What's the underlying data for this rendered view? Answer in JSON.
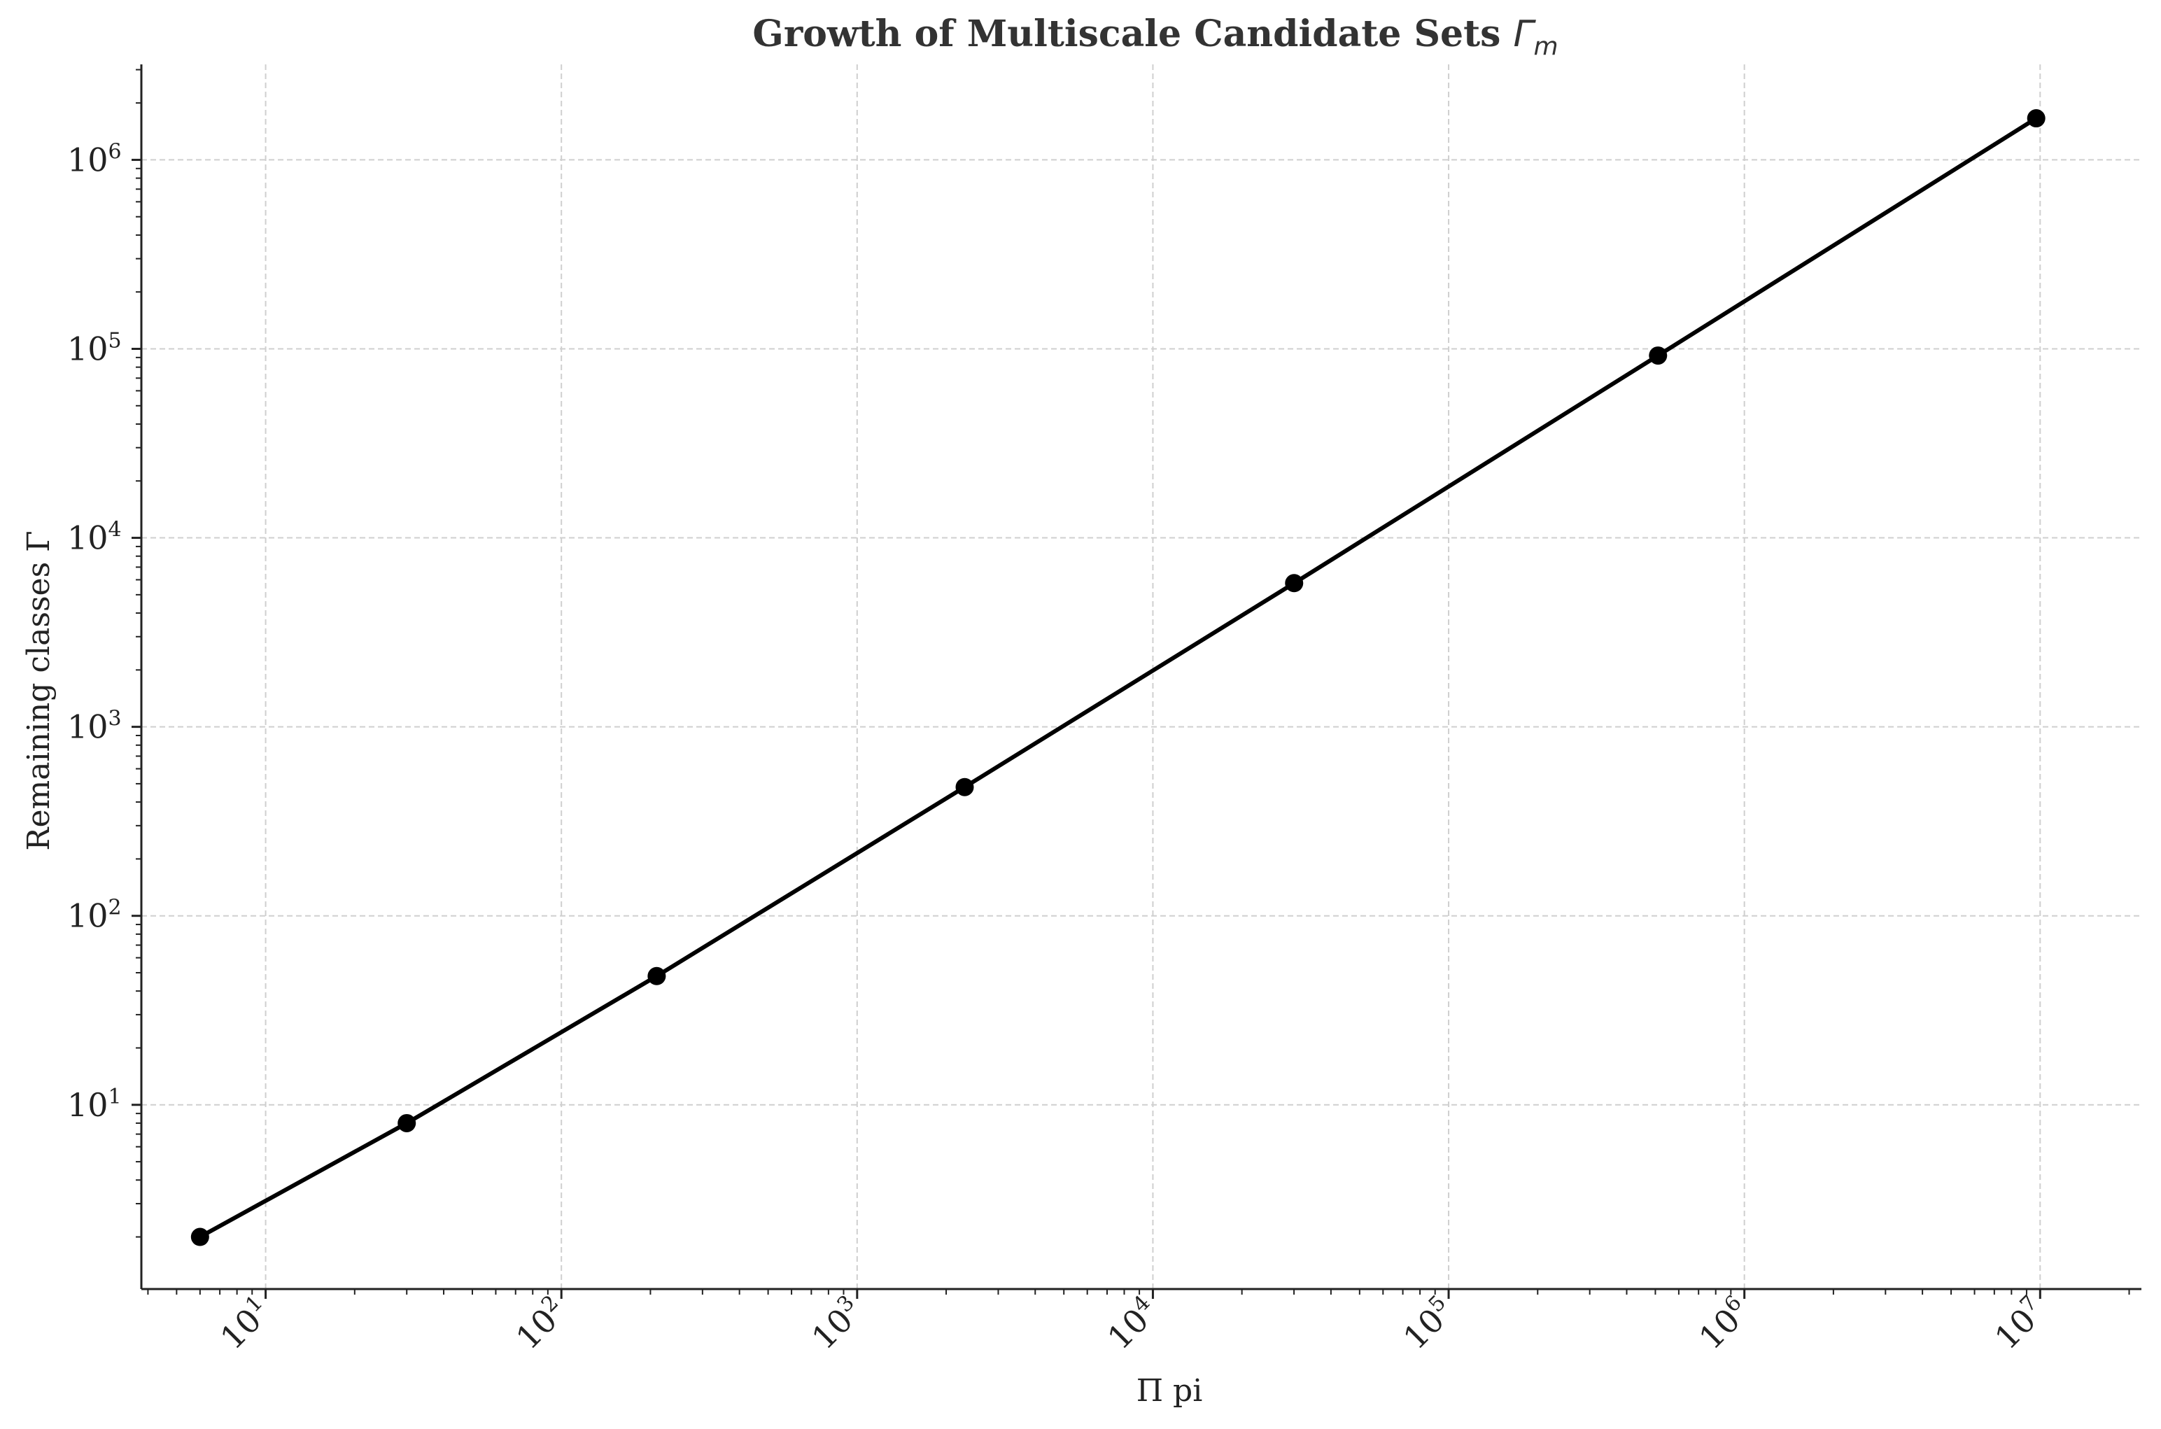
{
  "chart_data": {
    "type": "line",
    "title": "Growth of Multiscale Candidate Sets",
    "title_symbol": "Γ",
    "title_subscript": "m",
    "xlabel": "Π pi",
    "ylabel": "Remaining classes Γ",
    "xscale": "log",
    "yscale": "log",
    "xlim": [
      3.8,
      22000000
    ],
    "ylim": [
      1.06,
      3200000
    ],
    "grid": true,
    "legend": "none",
    "x_ticks": [
      10,
      100,
      1000,
      10000,
      100000,
      1000000,
      10000000
    ],
    "x_tick_labels": [
      {
        "base": "10",
        "exp": "1"
      },
      {
        "base": "10",
        "exp": "2"
      },
      {
        "base": "10",
        "exp": "3"
      },
      {
        "base": "10",
        "exp": "4"
      },
      {
        "base": "10",
        "exp": "5"
      },
      {
        "base": "10",
        "exp": "6"
      },
      {
        "base": "10",
        "exp": "7"
      }
    ],
    "y_ticks": [
      10,
      100,
      1000,
      10000,
      100000,
      1000000
    ],
    "y_tick_labels": [
      {
        "base": "10",
        "exp": "1"
      },
      {
        "base": "10",
        "exp": "2"
      },
      {
        "base": "10",
        "exp": "3"
      },
      {
        "base": "10",
        "exp": "4"
      },
      {
        "base": "10",
        "exp": "5"
      },
      {
        "base": "10",
        "exp": "6"
      }
    ],
    "line_color": "#000000",
    "series": [
      {
        "x": [
          6,
          30,
          210,
          2310,
          30030,
          510510,
          9699690
        ],
        "y": [
          2,
          8,
          48,
          480,
          5760,
          92160,
          1658880
        ]
      }
    ]
  }
}
